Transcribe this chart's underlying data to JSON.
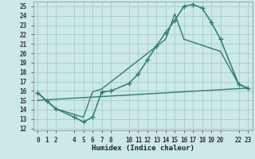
{
  "title": "",
  "xlabel": "Humidex (Indice chaleur)",
  "bg_color": "#cce8e8",
  "grid_color": "#aacfcf",
  "line_color": "#2e7d6e",
  "xlim": [
    -0.5,
    23.5
  ],
  "ylim": [
    12,
    25.5
  ],
  "xticks": [
    0,
    1,
    2,
    4,
    5,
    6,
    7,
    8,
    10,
    11,
    12,
    13,
    14,
    15,
    16,
    17,
    18,
    19,
    20,
    22,
    23
  ],
  "yticks": [
    12,
    13,
    14,
    15,
    16,
    17,
    18,
    19,
    20,
    21,
    22,
    23,
    24,
    25
  ],
  "line1_x": [
    0,
    1,
    2,
    4,
    5,
    6,
    7,
    8,
    10,
    11,
    12,
    13,
    14,
    15,
    16,
    17,
    18,
    19,
    20,
    22,
    23
  ],
  "line1_y": [
    15.8,
    14.9,
    14.1,
    13.2,
    12.7,
    13.2,
    15.9,
    16.0,
    16.8,
    17.8,
    19.3,
    20.8,
    22.2,
    23.5,
    25.0,
    25.2,
    24.8,
    23.3,
    21.5,
    16.7,
    16.3
  ],
  "line2_x": [
    0,
    2,
    5,
    6,
    7,
    14,
    15,
    16,
    20,
    22,
    23
  ],
  "line2_y": [
    15.8,
    14.1,
    13.2,
    15.9,
    16.2,
    21.5,
    24.2,
    21.5,
    20.2,
    16.7,
    16.3
  ],
  "line3_x": [
    0,
    23
  ],
  "line3_y": [
    15.0,
    16.3
  ],
  "font_family": "monospace",
  "title_fontsize": 7,
  "tick_fontsize": 5.5,
  "xlabel_fontsize": 6.5
}
